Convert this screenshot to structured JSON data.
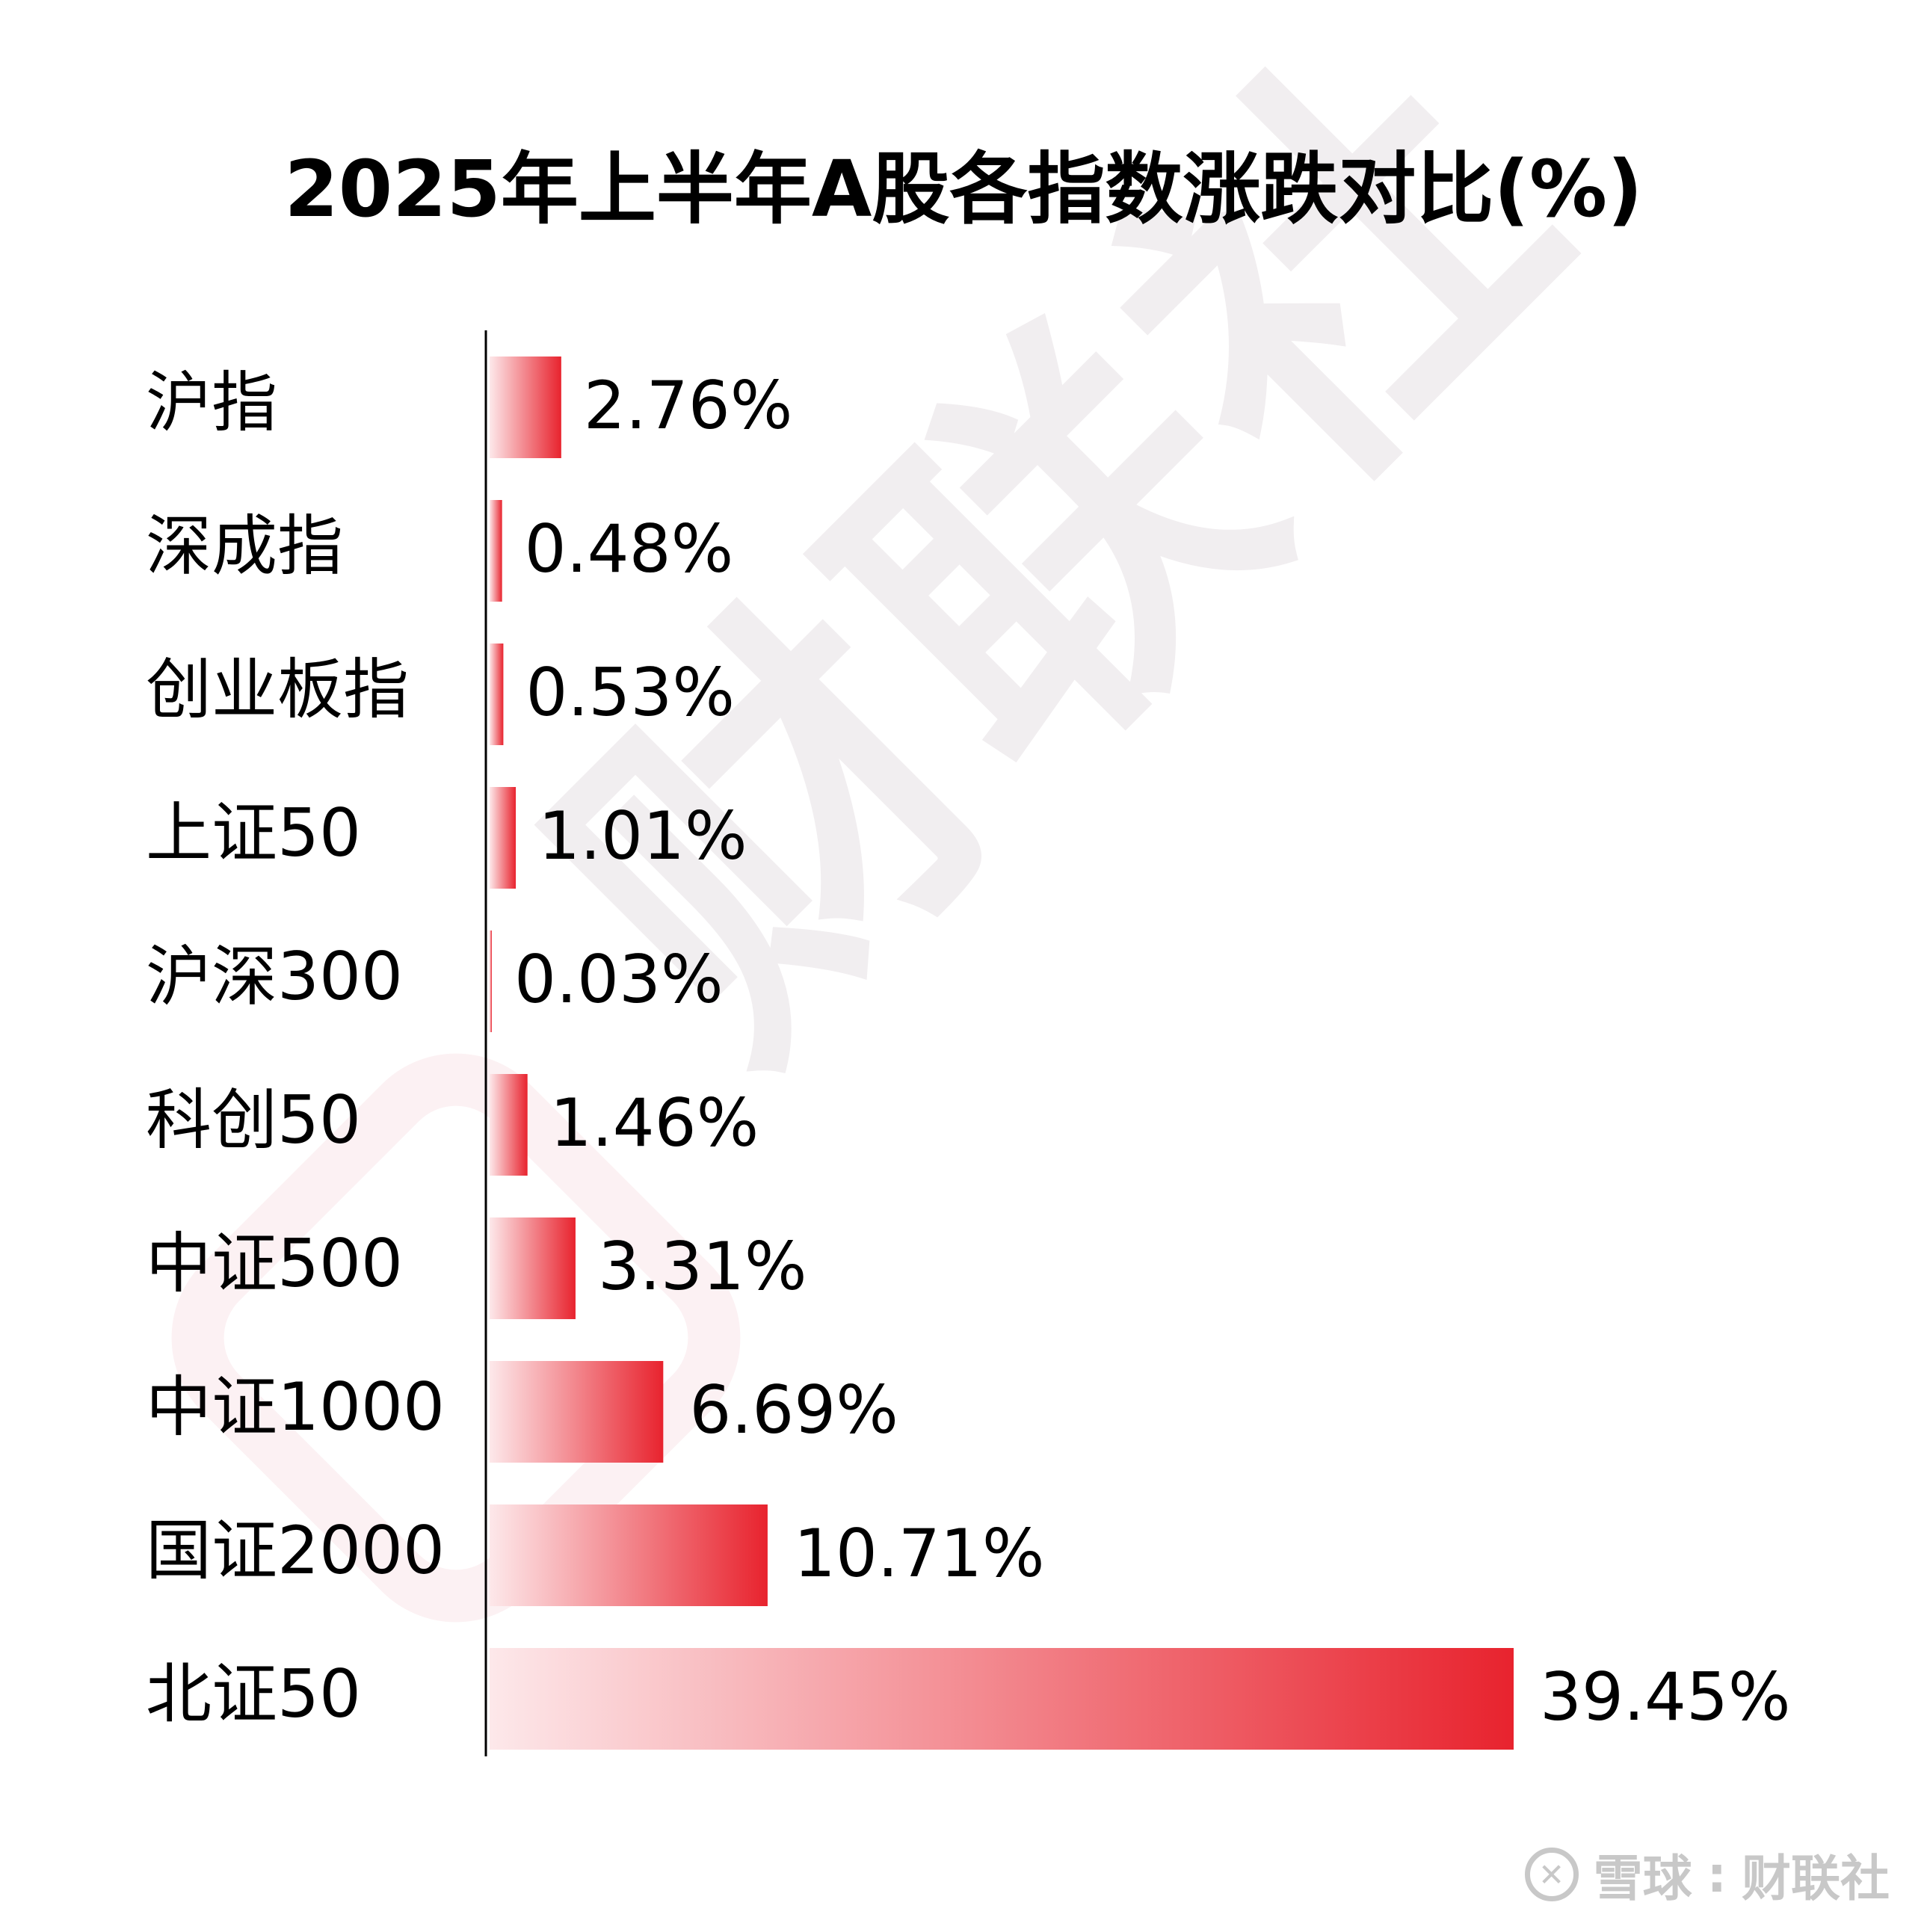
{
  "title": "2025年上半年A股各指数涨跌对比(%)",
  "watermark": "财联社",
  "footer": {
    "platform": "雪球",
    "separator": ":",
    "author": "财联社"
  },
  "colors": {
    "bar_end": "#e8232e",
    "bar_start": "#fde8ea",
    "axis": "#000000",
    "watermark": "#f1eef0",
    "footer": "#c8c8c8"
  },
  "chart_data": {
    "type": "bar",
    "orientation": "horizontal",
    "categories": [
      "沪指",
      "深成指",
      "创业板指",
      "上证50",
      "沪深300",
      "科创50",
      "中证500",
      "中证1000",
      "国证2000",
      "北证50"
    ],
    "values": [
      2.76,
      0.48,
      0.53,
      1.01,
      0.03,
      1.46,
      3.31,
      6.69,
      10.71,
      39.45
    ],
    "value_labels": [
      "2.76%",
      "0.48%",
      "0.53%",
      "1.01%",
      "0.03%",
      "1.46%",
      "3.31%",
      "6.69%",
      "10.71%",
      "39.45%"
    ],
    "title": "2025年上半年A股各指数涨跌对比(%)",
    "xlabel": "",
    "ylabel": "",
    "xlim": [
      0,
      39.45
    ],
    "grid": false,
    "legend": "none"
  }
}
